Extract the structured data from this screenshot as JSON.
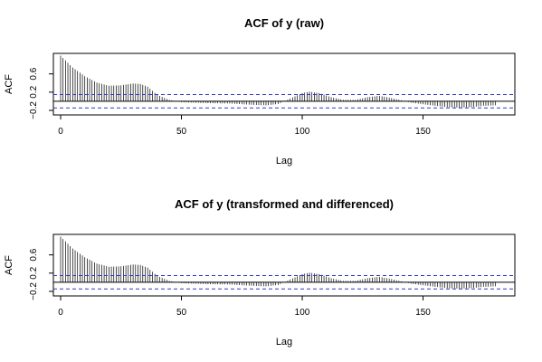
{
  "chart_data": [
    {
      "type": "bar",
      "title": "ACF of y (raw)",
      "xlabel": "Lag",
      "ylabel": "ACF",
      "xlim": [
        -3,
        188
      ],
      "ylim": [
        -0.3,
        1.05
      ],
      "x_ticks": [
        0,
        50,
        100,
        150
      ],
      "y_ticks": [
        -0.2,
        0.2,
        0.6
      ],
      "y_tick_labels": [
        "−0.2",
        "0.2",
        "0.6"
      ],
      "conf_bound": 0.146,
      "max_lag": 180,
      "knots": [
        [
          0,
          1.0
        ],
        [
          5,
          0.74
        ],
        [
          10,
          0.55
        ],
        [
          15,
          0.41
        ],
        [
          20,
          0.34
        ],
        [
          25,
          0.35
        ],
        [
          30,
          0.39
        ],
        [
          33,
          0.38
        ],
        [
          36,
          0.32
        ],
        [
          40,
          0.14
        ],
        [
          45,
          0.03
        ],
        [
          50,
          -0.02
        ],
        [
          60,
          -0.04
        ],
        [
          70,
          -0.05
        ],
        [
          80,
          -0.08
        ],
        [
          85,
          -0.09
        ],
        [
          90,
          -0.06
        ],
        [
          95,
          0.06
        ],
        [
          100,
          0.18
        ],
        [
          103,
          0.21
        ],
        [
          107,
          0.18
        ],
        [
          112,
          0.09
        ],
        [
          117,
          0.03
        ],
        [
          122,
          0.03
        ],
        [
          127,
          0.09
        ],
        [
          132,
          0.12
        ],
        [
          137,
          0.07
        ],
        [
          145,
          -0.03
        ],
        [
          152,
          -0.08
        ],
        [
          160,
          -0.13
        ],
        [
          165,
          -0.14
        ],
        [
          170,
          -0.13
        ],
        [
          175,
          -0.1
        ],
        [
          180,
          -0.09
        ]
      ]
    },
    {
      "type": "bar",
      "title": "ACF of y (transformed and differenced)",
      "xlabel": "Lag",
      "ylabel": "ACF",
      "xlim": [
        -3,
        188
      ],
      "ylim": [
        -0.3,
        1.05
      ],
      "x_ticks": [
        0,
        50,
        100,
        150
      ],
      "y_ticks": [
        -0.2,
        0.2,
        0.6
      ],
      "y_tick_labels": [
        "−0.2",
        "0.2",
        "0.6"
      ],
      "conf_bound": 0.146,
      "max_lag": 180,
      "knots": [
        [
          0,
          1.0
        ],
        [
          5,
          0.74
        ],
        [
          10,
          0.55
        ],
        [
          15,
          0.41
        ],
        [
          20,
          0.34
        ],
        [
          25,
          0.35
        ],
        [
          30,
          0.39
        ],
        [
          33,
          0.38
        ],
        [
          36,
          0.32
        ],
        [
          40,
          0.14
        ],
        [
          45,
          0.03
        ],
        [
          50,
          -0.02
        ],
        [
          60,
          -0.04
        ],
        [
          70,
          -0.05
        ],
        [
          80,
          -0.08
        ],
        [
          85,
          -0.09
        ],
        [
          90,
          -0.06
        ],
        [
          95,
          0.06
        ],
        [
          100,
          0.18
        ],
        [
          103,
          0.21
        ],
        [
          107,
          0.18
        ],
        [
          112,
          0.09
        ],
        [
          117,
          0.03
        ],
        [
          122,
          0.03
        ],
        [
          127,
          0.09
        ],
        [
          132,
          0.12
        ],
        [
          137,
          0.07
        ],
        [
          145,
          -0.03
        ],
        [
          152,
          -0.08
        ],
        [
          160,
          -0.13
        ],
        [
          165,
          -0.14
        ],
        [
          170,
          -0.13
        ],
        [
          175,
          -0.1
        ],
        [
          180,
          -0.09
        ]
      ]
    }
  ],
  "colors": {
    "bars": "#000000",
    "conf_line": "#3333cc",
    "zero_line": "#000000",
    "frame": "#000000"
  }
}
